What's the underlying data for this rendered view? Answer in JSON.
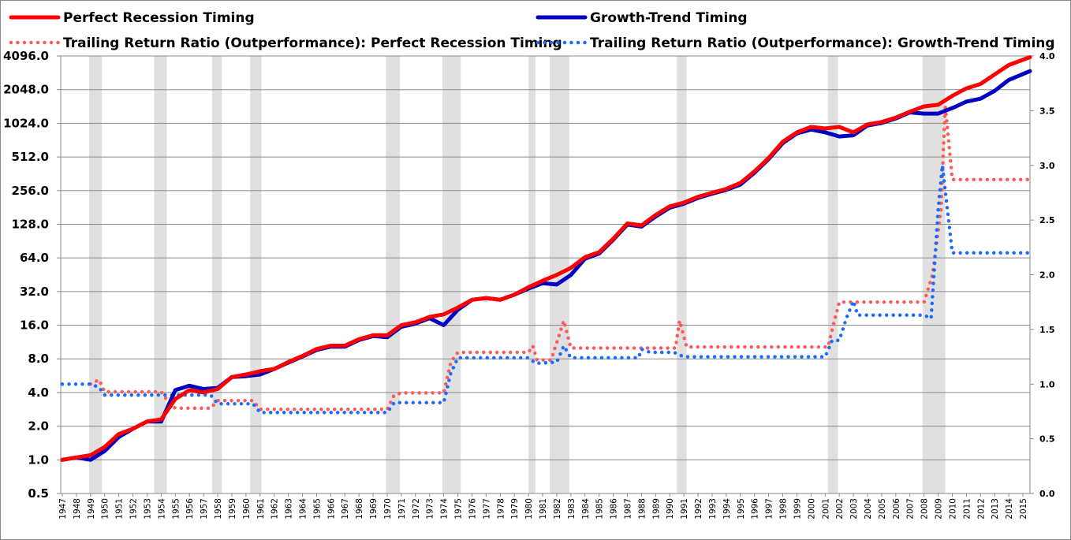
{
  "chart_data": {
    "type": "line",
    "legend": [
      {
        "label": "Perfect Recession Timing",
        "color": "#ff0000",
        "style": "solid"
      },
      {
        "label": "Growth-Trend Timing",
        "color": "#0000c0",
        "style": "solid"
      },
      {
        "label": "Trailing Return Ratio (Outperformance): Perfect Recession Timing",
        "color": "#ff5a5a",
        "style": "dotted"
      },
      {
        "label": "Trailing Return Ratio (Outperformance): Growth-Trend Timing",
        "color": "#1a6cff",
        "style": "dotted"
      }
    ],
    "legend_placement": "top",
    "y_left": {
      "scale": "log2",
      "range": [
        0.5,
        4096
      ],
      "ticks": [
        "0.5",
        "1.0",
        "2.0",
        "4.0",
        "8.0",
        "16.0",
        "32.0",
        "64.0",
        "128.0",
        "256.0",
        "512.0",
        "1024.0",
        "2048.0",
        "4096.0"
      ]
    },
    "y_right": {
      "range": [
        0,
        4
      ],
      "ticks": [
        "0.0",
        "0.5",
        "1.0",
        "1.5",
        "2.0",
        "2.5",
        "3.0",
        "3.5",
        "4.0"
      ]
    },
    "x_range": [
      1947,
      2015.5
    ],
    "x_ticks": [
      "1947",
      "1948",
      "1949",
      "1950",
      "1951",
      "1952",
      "1953",
      "1954",
      "1955",
      "1956",
      "1957",
      "1958",
      "1959",
      "1960",
      "1961",
      "1962",
      "1963",
      "1964",
      "1965",
      "1966",
      "1967",
      "1968",
      "1969",
      "1970",
      "1971",
      "1972",
      "1973",
      "1974",
      "1975",
      "1976",
      "1977",
      "1978",
      "1979",
      "1980",
      "1981",
      "1982",
      "1983",
      "1984",
      "1985",
      "1986",
      "1987",
      "1988",
      "1989",
      "1990",
      "1991",
      "1992",
      "1993",
      "1994",
      "1995",
      "1996",
      "1997",
      "1998",
      "1999",
      "2000",
      "2001",
      "2002",
      "2003",
      "2004",
      "2005",
      "2006",
      "2007",
      "2008",
      "2009",
      "2010",
      "2011",
      "2012",
      "2013",
      "2014",
      "2015"
    ],
    "recessions": [
      [
        1948.9,
        1949.8
      ],
      [
        1953.5,
        1954.4
      ],
      [
        1957.6,
        1958.3
      ],
      [
        1960.3,
        1961.1
      ],
      [
        1969.9,
        1970.9
      ],
      [
        1973.9,
        1975.2
      ],
      [
        1980.0,
        1980.5
      ],
      [
        1981.5,
        1982.9
      ],
      [
        1990.5,
        1991.2
      ],
      [
        2001.2,
        2001.9
      ],
      [
        2007.9,
        2009.5
      ]
    ],
    "series": [
      {
        "name": "Perfect Recession Timing",
        "axis": "left",
        "x": [
          1947,
          1948,
          1949,
          1950,
          1951,
          1952,
          1953,
          1954,
          1955,
          1956,
          1957,
          1958,
          1959,
          1960,
          1961,
          1962,
          1963,
          1964,
          1965,
          1966,
          1967,
          1968,
          1969,
          1970,
          1971,
          1972,
          1973,
          1974,
          1975,
          1976,
          1977,
          1978,
          1979,
          1980,
          1981,
          1982,
          1983,
          1984,
          1985,
          1986,
          1987,
          1988,
          1989,
          1990,
          1991,
          1992,
          1993,
          1994,
          1995,
          1996,
          1997,
          1998,
          1999,
          2000,
          2001,
          2002,
          2003,
          2004,
          2005,
          2006,
          2007,
          2008,
          2009,
          2010,
          2011,
          2012,
          2013,
          2014,
          2015.5
        ],
        "y": [
          1.0,
          1.05,
          1.1,
          1.3,
          1.7,
          1.9,
          2.2,
          2.3,
          3.5,
          4.2,
          4.0,
          4.3,
          5.5,
          5.8,
          6.2,
          6.5,
          7.5,
          8.5,
          9.8,
          10.5,
          10.5,
          12,
          13,
          13,
          16,
          17,
          19,
          20,
          23,
          27,
          28,
          27,
          30,
          35,
          40,
          45,
          52,
          65,
          72,
          95,
          130,
          125,
          155,
          185,
          200,
          225,
          245,
          265,
          300,
          380,
          500,
          700,
          850,
          950,
          920,
          950,
          850,
          1000,
          1050,
          1150,
          1300,
          1450,
          1500,
          1800,
          2100,
          2300,
          2800,
          3400,
          4000
        ]
      },
      {
        "name": "Growth-Trend Timing",
        "axis": "left",
        "x": [
          1947,
          1948,
          1949,
          1950,
          1951,
          1952,
          1953,
          1954,
          1955,
          1956,
          1957,
          1958,
          1959,
          1960,
          1961,
          1962,
          1963,
          1964,
          1965,
          1966,
          1967,
          1968,
          1969,
          1970,
          1971,
          1972,
          1973,
          1974,
          1975,
          1976,
          1977,
          1978,
          1979,
          1980,
          1981,
          1982,
          1983,
          1984,
          1985,
          1986,
          1987,
          1988,
          1989,
          1990,
          1991,
          1992,
          1993,
          1994,
          1995,
          1996,
          1997,
          1998,
          1999,
          2000,
          2001,
          2002,
          2003,
          2004,
          2005,
          2006,
          2007,
          2008,
          2009,
          2010,
          2011,
          2012,
          2013,
          2014,
          2015.5
        ],
        "y": [
          1.0,
          1.05,
          1.0,
          1.2,
          1.6,
          1.9,
          2.2,
          2.2,
          4.2,
          4.6,
          4.3,
          4.4,
          5.5,
          5.6,
          5.8,
          6.5,
          7.4,
          8.4,
          9.6,
          10.3,
          10.3,
          11.8,
          12.8,
          12.5,
          15.5,
          16.5,
          18.5,
          16,
          22,
          27,
          28,
          27,
          30,
          34,
          38,
          37,
          45,
          63,
          70,
          93,
          127,
          122,
          150,
          180,
          195,
          220,
          240,
          260,
          290,
          370,
          490,
          680,
          830,
          900,
          850,
          780,
          800,
          980,
          1030,
          1130,
          1280,
          1250,
          1250,
          1400,
          1600,
          1700,
          2000,
          2500,
          3000
        ]
      },
      {
        "name": "Trailing Return Ratio (Outperformance): Perfect Recession Timing",
        "axis": "right",
        "x": [
          1949,
          1949.6,
          1950,
          1954,
          1954.6,
          1955,
          1957.5,
          1958,
          1960.5,
          1961,
          1970,
          1970.5,
          1971,
          1974,
          1974.5,
          1975,
          1980,
          1980.3,
          1980.6,
          1981.6,
          1982.5,
          1983,
          1990.4,
          1990.7,
          1991.2,
          2001.2,
          2001.6,
          2002,
          2008,
          2008.6,
          2009.2,
          2009.5,
          2010,
          2015.5
        ],
        "y": [
          1.0,
          1.04,
          0.93,
          0.93,
          0.82,
          0.78,
          0.78,
          0.85,
          0.85,
          0.77,
          0.77,
          0.9,
          0.92,
          0.92,
          1.2,
          1.29,
          1.29,
          1.35,
          1.22,
          1.22,
          1.58,
          1.33,
          1.33,
          1.58,
          1.34,
          1.34,
          1.55,
          1.75,
          1.75,
          2.0,
          2.6,
          3.55,
          2.87,
          2.87
        ]
      },
      {
        "name": "Trailing Return Ratio (Outperformance): Growth-Trend Timing",
        "axis": "right",
        "x": [
          1947,
          1949,
          1949.6,
          1950,
          1954,
          1955,
          1957.5,
          1958,
          1960.5,
          1961,
          1970,
          1970.5,
          1971,
          1974,
          1974.5,
          1975,
          1980,
          1980.5,
          1982,
          1982.5,
          1983,
          1987.8,
          1988,
          1988.6,
          1990.3,
          1991,
          2001,
          2001.5,
          2002,
          2002.5,
          2003,
          2003.3,
          2008,
          2008.5,
          2009,
          2009.3,
          2010,
          2015.5
        ],
        "y": [
          1.0,
          1.0,
          0.97,
          0.9,
          0.9,
          0.9,
          0.9,
          0.82,
          0.82,
          0.74,
          0.74,
          0.83,
          0.83,
          0.83,
          1.1,
          1.24,
          1.24,
          1.19,
          1.2,
          1.35,
          1.24,
          1.24,
          1.32,
          1.29,
          1.29,
          1.25,
          1.25,
          1.4,
          1.4,
          1.6,
          1.76,
          1.63,
          1.63,
          1.6,
          2.6,
          3.0,
          2.2,
          2.2
        ]
      }
    ]
  }
}
